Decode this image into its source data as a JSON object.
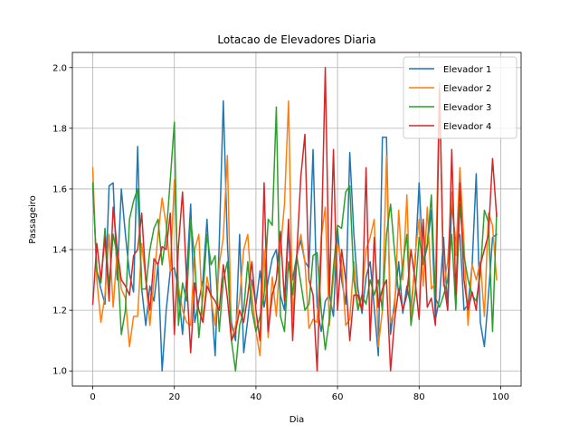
{
  "chart_data": {
    "type": "line",
    "title": "Lotacao de Elevadores Diaria",
    "xlabel": "Dia",
    "ylabel": "Passageiro",
    "xlim": [
      -5,
      105
    ],
    "ylim": [
      0.95,
      2.05
    ],
    "xticks": [
      0,
      20,
      40,
      60,
      80,
      100
    ],
    "yticks": [
      1.0,
      1.2,
      1.4,
      1.6,
      1.8,
      2.0
    ],
    "xtick_labels": [
      "0",
      "20",
      "40",
      "60",
      "80",
      "100"
    ],
    "ytick_labels": [
      "1.0",
      "1.2",
      "1.4",
      "1.6",
      "1.8",
      "2.0"
    ],
    "grid": true,
    "legend_position": "top-right",
    "series": [
      {
        "name": "Elevador 1",
        "color": "#1f77b4",
        "x": [
          0,
          1,
          2,
          3,
          4,
          5,
          6,
          7,
          8,
          9,
          10,
          11,
          12,
          13,
          14,
          15,
          16,
          17,
          18,
          19,
          20,
          21,
          22,
          23,
          24,
          25,
          26,
          27,
          28,
          29,
          30,
          31,
          32,
          33,
          34,
          35,
          36,
          37,
          38,
          39,
          40,
          41,
          42,
          43,
          44,
          45,
          46,
          47,
          48,
          49,
          50,
          51,
          52,
          53,
          54,
          55,
          56,
          57,
          58,
          59,
          60,
          61,
          62,
          63,
          64,
          65,
          66,
          67,
          68,
          69,
          70,
          71,
          72,
          73,
          74,
          75,
          76,
          77,
          78,
          79,
          80,
          81,
          82,
          83,
          84,
          85,
          86,
          87,
          88,
          89,
          90,
          91,
          92,
          93,
          94,
          95,
          96,
          97,
          98,
          99
        ],
        "values": [
          1.61,
          1.33,
          1.27,
          1.22,
          1.61,
          1.62,
          1.3,
          1.6,
          1.45,
          1.32,
          1.26,
          1.74,
          1.27,
          1.15,
          1.28,
          1.23,
          1.35,
          1.0,
          1.2,
          1.33,
          1.34,
          1.27,
          1.12,
          1.31,
          1.55,
          1.16,
          1.23,
          1.3,
          1.5,
          1.25,
          1.05,
          1.42,
          1.89,
          1.42,
          1.16,
          1.1,
          1.45,
          1.06,
          1.17,
          1.3,
          1.22,
          1.33,
          1.21,
          1.3,
          1.37,
          1.4,
          1.25,
          1.2,
          1.47,
          1.3,
          1.38,
          1.43,
          1.36,
          1.34,
          1.73,
          1.21,
          1.13,
          1.23,
          1.25,
          1.18,
          1.47,
          1.3,
          1.22,
          1.72,
          1.45,
          1.27,
          1.19,
          1.31,
          1.36,
          1.21,
          1.05,
          1.77,
          1.77,
          1.12,
          1.23,
          1.36,
          1.19,
          1.28,
          1.21,
          1.35,
          1.62,
          1.35,
          1.41,
          1.53,
          1.17,
          1.24,
          1.44,
          1.2,
          1.55,
          1.42,
          1.45,
          1.2,
          1.22,
          1.35,
          1.65,
          1.16,
          1.08,
          1.25,
          1.44,
          1.45
        ]
      },
      {
        "name": "Elevador 2",
        "color": "#ff7f0e",
        "x": [
          0,
          1,
          2,
          3,
          4,
          5,
          6,
          7,
          8,
          9,
          10,
          11,
          12,
          13,
          14,
          15,
          16,
          17,
          18,
          19,
          20,
          21,
          22,
          23,
          24,
          25,
          26,
          27,
          28,
          29,
          30,
          31,
          32,
          33,
          34,
          35,
          36,
          37,
          38,
          39,
          40,
          41,
          42,
          43,
          44,
          45,
          46,
          47,
          48,
          49,
          50,
          51,
          52,
          53,
          54,
          55,
          56,
          57,
          58,
          59,
          60,
          61,
          62,
          63,
          64,
          65,
          66,
          67,
          68,
          69,
          70,
          71,
          72,
          73,
          74,
          75,
          76,
          77,
          78,
          79,
          80,
          81,
          82,
          83,
          84,
          85,
          86,
          87,
          88,
          89,
          90,
          91,
          92,
          93,
          94,
          95,
          96,
          97,
          98,
          99
        ],
        "values": [
          1.67,
          1.3,
          1.16,
          1.25,
          1.45,
          1.21,
          1.4,
          1.27,
          1.24,
          1.08,
          1.18,
          1.18,
          1.42,
          1.3,
          1.15,
          1.3,
          1.45,
          1.57,
          1.48,
          1.33,
          1.63,
          1.28,
          1.2,
          1.16,
          1.15,
          1.4,
          1.45,
          1.16,
          1.31,
          1.24,
          1.15,
          1.35,
          1.44,
          1.71,
          1.1,
          1.15,
          1.24,
          1.4,
          1.45,
          1.25,
          1.13,
          1.05,
          1.4,
          1.11,
          1.31,
          1.18,
          1.4,
          1.55,
          1.89,
          1.17,
          1.38,
          1.45,
          1.36,
          1.14,
          1.17,
          1.16,
          1.44,
          1.54,
          1.15,
          1.31,
          1.42,
          1.36,
          1.15,
          1.17,
          1.36,
          1.21,
          1.25,
          1.4,
          1.44,
          1.5,
          1.08,
          1.2,
          1.71,
          1.16,
          1.2,
          1.53,
          1.3,
          1.58,
          1.16,
          1.38,
          1.5,
          1.28,
          1.54,
          1.27,
          1.29,
          1.95,
          1.28,
          1.36,
          1.59,
          1.38,
          1.67,
          1.42,
          1.15,
          1.35,
          1.3,
          1.36,
          1.18,
          1.52,
          1.48,
          1.3
        ]
      },
      {
        "name": "Elevador 3",
        "color": "#2ca02c",
        "x": [
          0,
          1,
          2,
          3,
          4,
          5,
          6,
          7,
          8,
          9,
          10,
          11,
          12,
          13,
          14,
          15,
          16,
          17,
          18,
          19,
          20,
          21,
          22,
          23,
          24,
          25,
          26,
          27,
          28,
          29,
          30,
          31,
          32,
          33,
          34,
          35,
          36,
          37,
          38,
          39,
          40,
          41,
          42,
          43,
          44,
          45,
          46,
          47,
          48,
          49,
          50,
          51,
          52,
          53,
          54,
          55,
          56,
          57,
          58,
          59,
          60,
          61,
          62,
          63,
          64,
          65,
          66,
          67,
          68,
          69,
          70,
          71,
          72,
          73,
          74,
          75,
          76,
          77,
          78,
          79,
          80,
          81,
          82,
          83,
          84,
          85,
          86,
          87,
          88,
          89,
          90,
          91,
          92,
          93,
          94,
          95,
          96,
          97,
          98,
          99
        ],
        "values": [
          1.62,
          1.33,
          1.29,
          1.47,
          1.28,
          1.45,
          1.38,
          1.12,
          1.2,
          1.5,
          1.56,
          1.6,
          1.27,
          1.27,
          1.4,
          1.47,
          1.5,
          1.35,
          1.45,
          1.63,
          1.82,
          1.15,
          1.29,
          1.23,
          1.5,
          1.37,
          1.11,
          1.25,
          1.45,
          1.35,
          1.38,
          1.13,
          1.3,
          1.36,
          1.1,
          1.0,
          1.15,
          1.2,
          1.36,
          1.2,
          1.13,
          1.18,
          1.25,
          1.5,
          1.48,
          1.87,
          1.18,
          1.13,
          1.36,
          1.25,
          1.38,
          1.29,
          1.2,
          1.22,
          1.38,
          1.39,
          1.2,
          1.07,
          1.17,
          1.34,
          1.48,
          1.47,
          1.59,
          1.61,
          1.3,
          1.2,
          1.25,
          1.22,
          1.3,
          1.25,
          1.3,
          1.2,
          1.45,
          1.55,
          1.39,
          1.25,
          1.35,
          1.45,
          1.15,
          1.25,
          1.44,
          1.36,
          1.42,
          1.58,
          1.24,
          1.21,
          1.25,
          1.3,
          1.45,
          1.2,
          1.55,
          1.38,
          1.3,
          1.25,
          1.23,
          1.32,
          1.53,
          1.49,
          1.13,
          1.52
        ]
      },
      {
        "name": "Elevador 4",
        "color": "#d62728",
        "x": [
          0,
          1,
          2,
          3,
          4,
          5,
          6,
          7,
          8,
          9,
          10,
          11,
          12,
          13,
          14,
          15,
          16,
          17,
          18,
          19,
          20,
          21,
          22,
          23,
          24,
          25,
          26,
          27,
          28,
          29,
          30,
          31,
          32,
          33,
          34,
          35,
          36,
          37,
          38,
          39,
          40,
          41,
          42,
          43,
          44,
          45,
          46,
          47,
          48,
          49,
          50,
          51,
          52,
          53,
          54,
          55,
          56,
          57,
          58,
          59,
          60,
          61,
          62,
          63,
          64,
          65,
          66,
          67,
          68,
          69,
          70,
          71,
          72,
          73,
          74,
          75,
          76,
          77,
          78,
          79,
          80,
          81,
          82,
          83,
          84,
          85,
          86,
          87,
          88,
          89,
          90,
          91,
          92,
          93,
          94,
          95,
          96,
          97,
          98,
          99
        ],
        "values": [
          1.22,
          1.42,
          1.3,
          1.44,
          1.23,
          1.54,
          1.4,
          1.3,
          1.28,
          1.25,
          1.38,
          1.4,
          1.52,
          1.3,
          1.2,
          1.37,
          1.35,
          1.41,
          1.4,
          1.52,
          1.12,
          1.41,
          1.59,
          1.3,
          1.06,
          1.29,
          1.2,
          1.16,
          1.28,
          1.25,
          1.23,
          1.2,
          1.35,
          1.24,
          1.1,
          1.13,
          1.2,
          1.16,
          1.25,
          1.36,
          1.2,
          1.1,
          1.62,
          1.13,
          1.25,
          1.3,
          1.46,
          1.23,
          1.5,
          1.1,
          1.38,
          1.64,
          1.78,
          1.3,
          1.25,
          1.0,
          1.4,
          2.0,
          1.25,
          1.73,
          1.2,
          1.4,
          1.3,
          1.1,
          1.25,
          1.25,
          1.2,
          1.67,
          1.1,
          1.44,
          1.21,
          1.27,
          1.3,
          1.0,
          1.17,
          1.27,
          1.2,
          1.25,
          1.4,
          1.3,
          1.17,
          1.5,
          1.21,
          1.24,
          1.15,
          1.93,
          1.3,
          1.2,
          1.73,
          1.25,
          1.62,
          1.3,
          1.2,
          1.26,
          1.2,
          1.35,
          1.4,
          1.45,
          1.7,
          1.51
        ]
      }
    ]
  }
}
